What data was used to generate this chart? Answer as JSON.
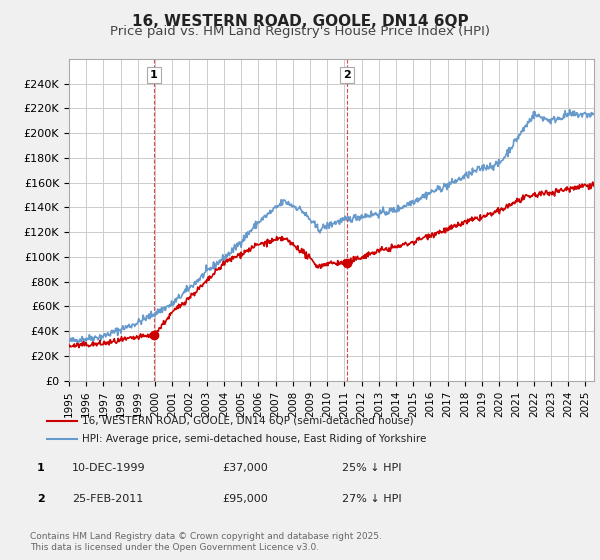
{
  "title": "16, WESTERN ROAD, GOOLE, DN14 6QP",
  "subtitle": "Price paid vs. HM Land Registry's House Price Index (HPI)",
  "ylabel": "",
  "ylim": [
    0,
    260000
  ],
  "yticks": [
    0,
    20000,
    40000,
    60000,
    80000,
    100000,
    120000,
    140000,
    160000,
    180000,
    200000,
    220000,
    240000
  ],
  "ytick_labels": [
    "£0",
    "£20K",
    "£40K",
    "£60K",
    "£80K",
    "£100K",
    "£120K",
    "£140K",
    "£160K",
    "£180K",
    "£200K",
    "£220K",
    "£240K"
  ],
  "x_start_year": 1995,
  "x_end_year": 2025,
  "sale1_date": 1999.94,
  "sale1_price": 37000,
  "sale1_label": "1",
  "sale2_date": 2011.15,
  "sale2_price": 95000,
  "sale2_label": "2",
  "legend_line1": "16, WESTERN ROAD, GOOLE, DN14 6QP (semi-detached house)",
  "legend_line2": "HPI: Average price, semi-detached house, East Riding of Yorkshire",
  "table_row1": [
    "1",
    "10-DEC-1999",
    "£37,000",
    "25% ↓ HPI"
  ],
  "table_row2": [
    "2",
    "25-FEB-2011",
    "£95,000",
    "27% ↓ HPI"
  ],
  "footnote": "Contains HM Land Registry data © Crown copyright and database right 2025.\nThis data is licensed under the Open Government Licence v3.0.",
  "line_color_red": "#cc0000",
  "line_color_blue": "#6699cc",
  "background_color": "#f0f0f0",
  "plot_background": "#ffffff",
  "grid_color": "#cccccc",
  "title_fontsize": 11,
  "subtitle_fontsize": 9.5
}
